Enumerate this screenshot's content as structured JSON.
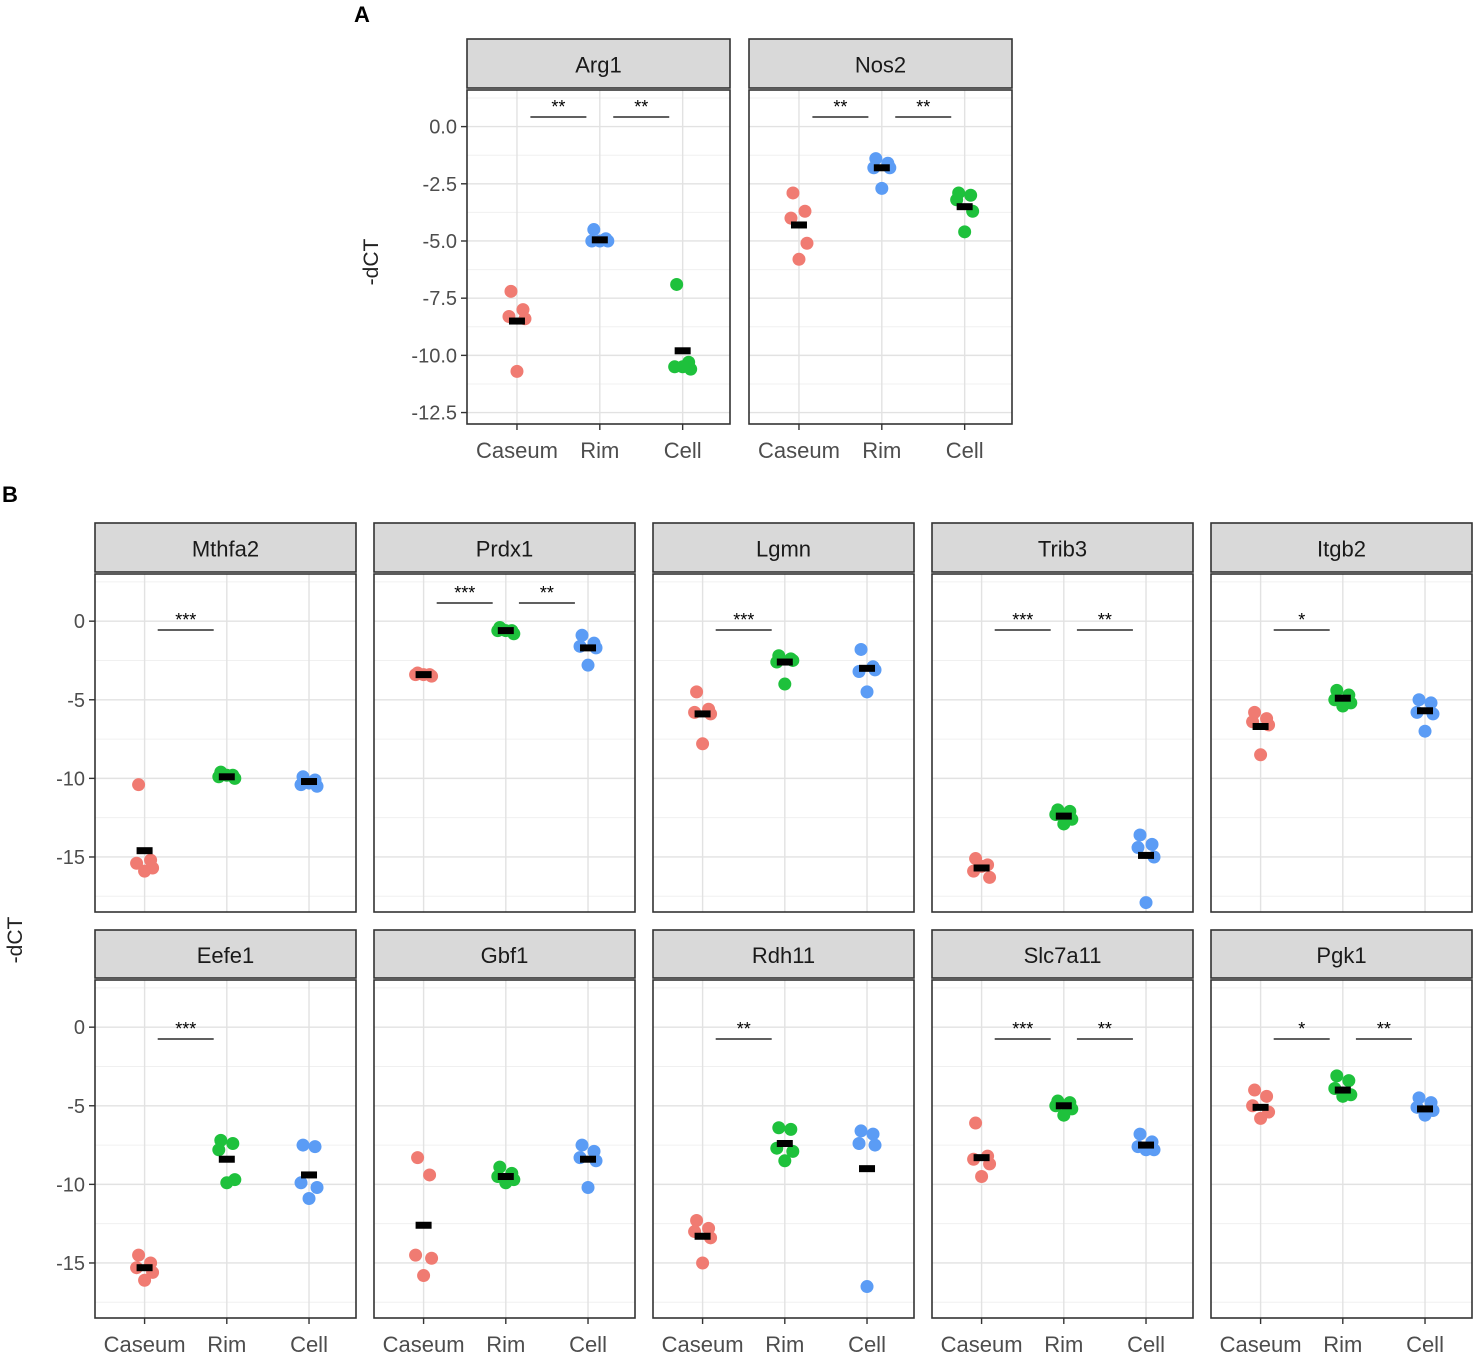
{
  "figure": {
    "panel_labels": [
      "A",
      "B"
    ],
    "ylabel": "-dCT",
    "categories": [
      "Caseum",
      "Rim",
      "Cell"
    ],
    "group_colors": {
      "Caseum": "#f07b72",
      "Rim": "#5b9cf5",
      "Cell": "#1ec13c"
    }
  },
  "chart_data": [
    {
      "type": "scatter",
      "panel": "A",
      "title": "Arg1",
      "categories": [
        "Caseum",
        "Rim",
        "Cell"
      ],
      "ylim": [
        -13,
        1.6
      ],
      "yticks": [
        0.0,
        -2.5,
        -5.0,
        -7.5,
        -10.0,
        -12.5
      ],
      "ytick_labels": [
        "0.0",
        "-2.5",
        "-5.0",
        "-7.5",
        "-10.0",
        "-12.5"
      ],
      "colors": [
        "#f07b72",
        "#5b9cf5",
        "#1ec13c"
      ],
      "points": [
        [
          -7.2,
          -8.0,
          -8.3,
          -8.4,
          -10.7
        ],
        [
          -4.5,
          -4.9,
          -5.0,
          -5.0,
          -5.0
        ],
        [
          -6.9,
          -10.3,
          -10.5,
          -10.6,
          -10.5
        ]
      ],
      "means": [
        -8.5,
        -4.95,
        -9.8
      ],
      "significance": [
        {
          "from": "Caseum",
          "to": "Rim",
          "label": "**"
        },
        {
          "from": "Rim",
          "to": "Cell",
          "label": "**"
        }
      ]
    },
    {
      "type": "scatter",
      "panel": "A",
      "title": "Nos2",
      "categories": [
        "Caseum",
        "Rim",
        "Cell"
      ],
      "ylim": [
        -13,
        1.6
      ],
      "colors": [
        "#f07b72",
        "#5b9cf5",
        "#1ec13c"
      ],
      "points": [
        [
          -2.9,
          -3.7,
          -4.0,
          -5.1,
          -5.8
        ],
        [
          -1.4,
          -1.6,
          -1.8,
          -1.8,
          -2.7
        ],
        [
          -2.9,
          -3.0,
          -3.2,
          -3.7,
          -4.6
        ]
      ],
      "means": [
        -4.3,
        -1.8,
        -3.5
      ],
      "significance": [
        {
          "from": "Caseum",
          "to": "Rim",
          "label": "**"
        },
        {
          "from": "Rim",
          "to": "Cell",
          "label": "**"
        }
      ]
    },
    {
      "type": "scatter",
      "panel": "B",
      "title": "Mthfa2",
      "categories": [
        "Caseum",
        "Rim",
        "Cell"
      ],
      "ylim": [
        -18.5,
        3
      ],
      "yticks": [
        0,
        -5,
        -10,
        -15
      ],
      "ytick_labels": [
        "0",
        "-5",
        "-10",
        "-15"
      ],
      "colors": [
        "#f07b72",
        "#1ec13c",
        "#5b9cf5"
      ],
      "points": [
        [
          -10.4,
          -15.2,
          -15.4,
          -15.7,
          -15.9
        ],
        [
          -9.6,
          -9.8,
          -9.9,
          -10.0,
          -9.8
        ],
        [
          -9.9,
          -10.1,
          -10.4,
          -10.5,
          -10.3
        ]
      ],
      "means": [
        -14.6,
        -9.9,
        -10.2
      ],
      "significance": [
        {
          "from": "Caseum",
          "to": "Rim",
          "label": "***"
        }
      ]
    },
    {
      "type": "scatter",
      "panel": "B",
      "title": "Prdx1",
      "categories": [
        "Caseum",
        "Rim",
        "Cell"
      ],
      "ylim": [
        -18.5,
        3
      ],
      "colors": [
        "#f07b72",
        "#1ec13c",
        "#5b9cf5"
      ],
      "points": [
        [
          -3.3,
          -3.4,
          -3.4,
          -3.5,
          -3.4
        ],
        [
          -0.4,
          -0.6,
          -0.6,
          -0.8,
          -0.6
        ],
        [
          -0.9,
          -1.4,
          -1.6,
          -1.7,
          -2.8
        ]
      ],
      "means": [
        -3.4,
        -0.6,
        -1.7
      ],
      "significance": [
        {
          "from": "Caseum",
          "to": "Rim",
          "label": "***"
        },
        {
          "from": "Rim",
          "to": "Cell",
          "label": "**"
        }
      ]
    },
    {
      "type": "scatter",
      "panel": "B",
      "title": "Lgmn",
      "categories": [
        "Caseum",
        "Rim",
        "Cell"
      ],
      "ylim": [
        -18.5,
        3
      ],
      "colors": [
        "#f07b72",
        "#1ec13c",
        "#5b9cf5"
      ],
      "points": [
        [
          -4.5,
          -5.6,
          -5.8,
          -5.9,
          -7.8
        ],
        [
          -2.2,
          -2.4,
          -2.6,
          -2.5,
          -4.0
        ],
        [
          -1.8,
          -2.9,
          -3.2,
          -3.1,
          -4.5
        ]
      ],
      "means": [
        -5.9,
        -2.6,
        -3.0
      ],
      "significance": [
        {
          "from": "Caseum",
          "to": "Rim",
          "label": "***"
        }
      ]
    },
    {
      "type": "scatter",
      "panel": "B",
      "title": "Trib3",
      "categories": [
        "Caseum",
        "Rim",
        "Cell"
      ],
      "ylim": [
        -18.5,
        3
      ],
      "colors": [
        "#f07b72",
        "#1ec13c",
        "#5b9cf5"
      ],
      "points": [
        [
          -15.1,
          -15.5,
          -15.9,
          -16.3,
          -15.6
        ],
        [
          -12.0,
          -12.1,
          -12.3,
          -12.6,
          -12.9
        ],
        [
          -13.6,
          -14.2,
          -14.4,
          -15.0,
          -17.9
        ]
      ],
      "means": [
        -15.7,
        -12.4,
        -14.9
      ],
      "significance": [
        {
          "from": "Caseum",
          "to": "Rim",
          "label": "***"
        },
        {
          "from": "Rim",
          "to": "Cell",
          "label": "**"
        }
      ]
    },
    {
      "type": "scatter",
      "panel": "B",
      "title": "Itgb2",
      "categories": [
        "Caseum",
        "Rim",
        "Cell"
      ],
      "ylim": [
        -18.5,
        3
      ],
      "colors": [
        "#f07b72",
        "#1ec13c",
        "#5b9cf5"
      ],
      "points": [
        [
          -5.8,
          -6.2,
          -6.4,
          -6.6,
          -8.5
        ],
        [
          -4.4,
          -4.7,
          -5.0,
          -5.2,
          -5.4
        ],
        [
          -5.0,
          -5.2,
          -5.8,
          -5.9,
          -7.0
        ]
      ],
      "means": [
        -6.7,
        -4.9,
        -5.7
      ],
      "significance": [
        {
          "from": "Caseum",
          "to": "Rim",
          "label": "*"
        }
      ]
    },
    {
      "type": "scatter",
      "panel": "B",
      "title": "Eefe1",
      "categories": [
        "Caseum",
        "Rim",
        "Cell"
      ],
      "ylim": [
        -18.5,
        3
      ],
      "colors": [
        "#f07b72",
        "#1ec13c",
        "#5b9cf5"
      ],
      "points": [
        [
          -14.5,
          -15.0,
          -15.3,
          -15.6,
          -16.1
        ],
        [
          -7.2,
          -7.4,
          -7.8,
          -9.7,
          -9.9
        ],
        [
          -7.5,
          -7.6,
          -9.9,
          -10.2,
          -10.9
        ]
      ],
      "means": [
        -15.3,
        -8.4,
        -9.4
      ],
      "significance": [
        {
          "from": "Caseum",
          "to": "Rim",
          "label": "***"
        }
      ]
    },
    {
      "type": "scatter",
      "panel": "B",
      "title": "Gbf1",
      "categories": [
        "Caseum",
        "Rim",
        "Cell"
      ],
      "ylim": [
        -18.5,
        3
      ],
      "colors": [
        "#f07b72",
        "#1ec13c",
        "#5b9cf5"
      ],
      "points": [
        [
          -8.3,
          -9.4,
          -14.5,
          -14.7,
          -15.8
        ],
        [
          -8.9,
          -9.3,
          -9.5,
          -9.7,
          -9.9
        ],
        [
          -7.5,
          -7.9,
          -8.3,
          -8.5,
          -10.2
        ]
      ],
      "means": [
        -12.6,
        -9.5,
        -8.4
      ],
      "significance": []
    },
    {
      "type": "scatter",
      "panel": "B",
      "title": "Rdh11",
      "categories": [
        "Caseum",
        "Rim",
        "Cell"
      ],
      "ylim": [
        -18.5,
        3
      ],
      "colors": [
        "#f07b72",
        "#1ec13c",
        "#5b9cf5"
      ],
      "points": [
        [
          -12.3,
          -12.8,
          -13.0,
          -13.4,
          -15.0
        ],
        [
          -6.4,
          -6.5,
          -7.7,
          -7.9,
          -8.5
        ],
        [
          -6.6,
          -6.8,
          -7.4,
          -7.5,
          -16.5
        ]
      ],
      "means": [
        -13.3,
        -7.4,
        -9.0
      ],
      "significance": [
        {
          "from": "Caseum",
          "to": "Rim",
          "label": "**"
        }
      ]
    },
    {
      "type": "scatter",
      "panel": "B",
      "title": "Slc7a11",
      "categories": [
        "Caseum",
        "Rim",
        "Cell"
      ],
      "ylim": [
        -18.5,
        3
      ],
      "colors": [
        "#f07b72",
        "#1ec13c",
        "#5b9cf5"
      ],
      "points": [
        [
          -6.1,
          -8.2,
          -8.4,
          -8.7,
          -9.5
        ],
        [
          -4.7,
          -4.8,
          -5.0,
          -5.2,
          -5.6
        ],
        [
          -6.8,
          -7.3,
          -7.6,
          -7.8,
          -7.8
        ]
      ],
      "means": [
        -8.3,
        -5.0,
        -7.5
      ],
      "significance": [
        {
          "from": "Caseum",
          "to": "Rim",
          "label": "***"
        },
        {
          "from": "Rim",
          "to": "Cell",
          "label": "**"
        }
      ]
    },
    {
      "type": "scatter",
      "panel": "B",
      "title": "Pgk1",
      "categories": [
        "Caseum",
        "Rim",
        "Cell"
      ],
      "ylim": [
        -18.5,
        3
      ],
      "colors": [
        "#f07b72",
        "#1ec13c",
        "#5b9cf5"
      ],
      "points": [
        [
          -4.0,
          -4.4,
          -5.0,
          -5.4,
          -5.8
        ],
        [
          -3.1,
          -3.4,
          -3.9,
          -4.3,
          -4.4
        ],
        [
          -4.5,
          -4.8,
          -5.1,
          -5.3,
          -5.6
        ]
      ],
      "means": [
        -5.1,
        -4.0,
        -5.2
      ],
      "significance": [
        {
          "from": "Caseum",
          "to": "Rim",
          "label": "*"
        },
        {
          "from": "Rim",
          "to": "Cell",
          "label": "**"
        }
      ]
    }
  ]
}
